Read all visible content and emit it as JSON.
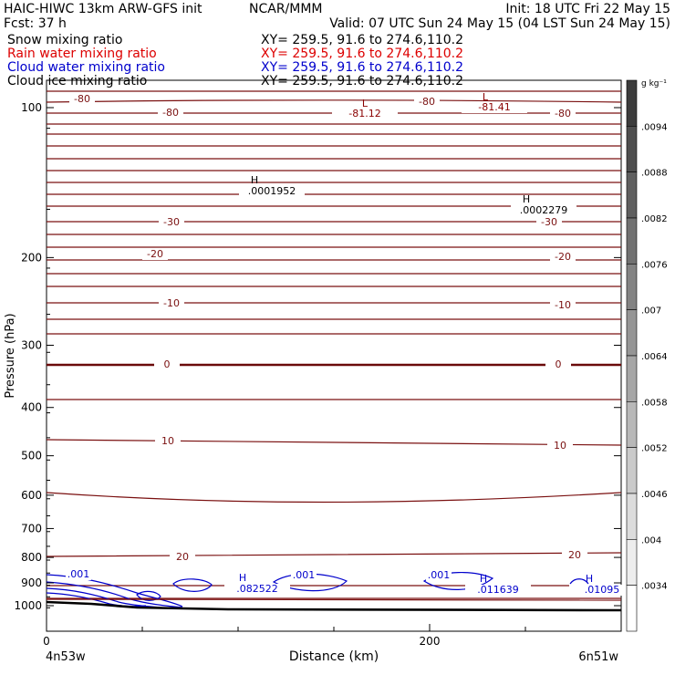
{
  "header": {
    "line1_left": "HAIC-HIWC 13km ARW-GFS init",
    "line1_center": "NCAR/MMM",
    "line1_right": "Init: 18 UTC Fri 22 May 15",
    "line2_left": "Fcst:    37 h",
    "line2_right": "Valid: 07 UTC Sun 24 May 15 (04 LST Sun 24 May 15)"
  },
  "fields": [
    {
      "name": "Snow mixing ratio",
      "xy": "XY= 259.5, 91.6 to 274.6,110.2",
      "color": "#000000"
    },
    {
      "name": "Rain water mixing ratio",
      "xy": "XY= 259.5, 91.6 to 274.6,110.2",
      "color": "#dd0000"
    },
    {
      "name": "Cloud water mixing ratio",
      "xy": "XY= 259.5, 91.6 to 274.6,110.2",
      "color": "#0000cc"
    },
    {
      "name": "Cloud ice mixing ratio",
      "xy": "XY= 259.5, 91.6 to 274.6,110.2",
      "color": "#000000"
    }
  ],
  "colorbar": {
    "unit": "g kg⁻¹",
    "labels": [
      ".0094",
      ".0088",
      ".0082",
      ".0076",
      ".007",
      ".0064",
      ".0058",
      ".0052",
      ".0046",
      ".004",
      ".0034"
    ]
  },
  "chart_data": {
    "type": "contour",
    "title": "",
    "xlabel": "Distance (km)",
    "ylabel": "Pressure (hPa)",
    "xlim": [
      0,
      300
    ],
    "ylim": [
      1050,
      50
    ],
    "y_scale": "log",
    "x_ticks": [
      0,
      200
    ],
    "y_ticks": [
      100,
      200,
      300,
      400,
      500,
      600,
      700,
      800,
      900,
      1000
    ],
    "x_endpoints": [
      "4n53w",
      "6n51w"
    ],
    "temperature_contours": [
      {
        "value": -80,
        "labels": [
          "-80",
          "-80",
          "-80",
          "-80"
        ]
      },
      {
        "value": -30,
        "labels": [
          "-30",
          "-30"
        ]
      },
      {
        "value": -20,
        "labels": [
          "-20",
          "-20"
        ]
      },
      {
        "value": -10,
        "labels": [
          "-10",
          "-10"
        ]
      },
      {
        "value": 0,
        "labels": [
          "0",
          "0"
        ]
      },
      {
        "value": 10,
        "labels": [
          "10",
          "10"
        ]
      },
      {
        "value": 20,
        "labels": [
          "20",
          "20"
        ]
      }
    ],
    "extrema": [
      {
        "type": "L",
        "value": "-81.12",
        "x_km": 175,
        "p_hPa": 112
      },
      {
        "type": "L",
        "value": "-81.41",
        "x_km": 241,
        "p_hPa": 108
      },
      {
        "type": "H",
        "value": ".0001952",
        "x_km": 113,
        "p_hPa": 242
      },
      {
        "type": "H",
        "value": ".0002279",
        "x_km": 258,
        "p_hPa": 277
      },
      {
        "type": "H",
        "value": ".082522",
        "x_km": 104,
        "p_hPa": 970
      },
      {
        "type": "H",
        "value": ".011639",
        "x_km": 236,
        "p_hPa": 970
      },
      {
        "type": "H",
        "value": ".01095",
        "x_km": 294,
        "p_hPa": 970
      }
    ],
    "cloud_water_contours": [
      ".001",
      ".001",
      ".001"
    ],
    "colors": {
      "temperature": "#7a1010",
      "freezing": "#6a0a0a",
      "cloud_water": "#0000cc",
      "terrain": "#000000"
    }
  }
}
